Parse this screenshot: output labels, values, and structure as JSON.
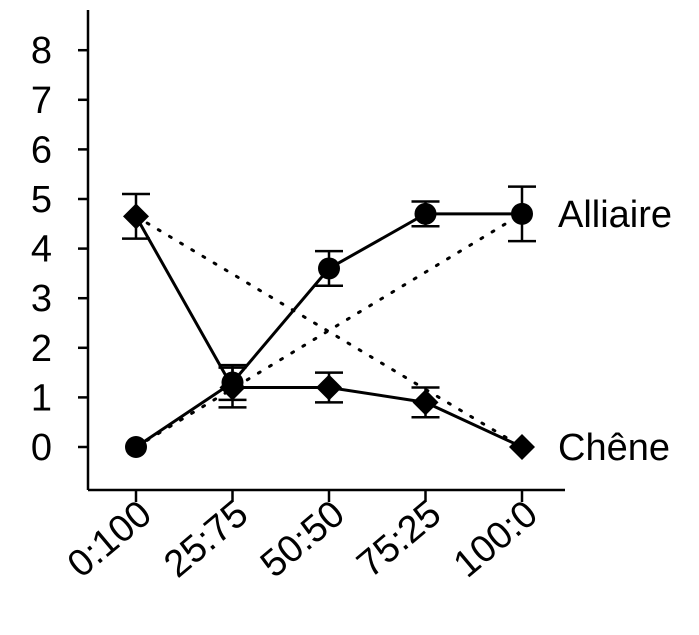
{
  "chart_data": {
    "type": "line",
    "categories": [
      "0:100",
      "25:75",
      "50:50",
      "75:25",
      "100:0"
    ],
    "ylim": [
      0,
      8
    ],
    "yticks": [
      0,
      1,
      2,
      3,
      4,
      5,
      6,
      7,
      8
    ],
    "grid": false,
    "series": [
      {
        "name": "Alliaire",
        "marker": "circle",
        "values": [
          0,
          1.3,
          3.6,
          4.7,
          4.7
        ],
        "error": [
          null,
          0.35,
          0.35,
          0.25,
          0.55
        ]
      },
      {
        "name": "Chêne",
        "marker": "diamond",
        "values": [
          4.65,
          1.2,
          1.2,
          0.9,
          0
        ],
        "error": [
          0.45,
          0.4,
          0.3,
          0.3,
          null
        ]
      }
    ],
    "expected_lines": [
      {
        "series": "Alliaire",
        "from": [
          0,
          0
        ],
        "to": [
          4,
          4.7
        ],
        "style": "dotted"
      },
      {
        "series": "Chêne",
        "from": [
          0,
          4.65
        ],
        "to": [
          4,
          0
        ],
        "style": "dotted"
      }
    ],
    "colors": {
      "line": "#000000",
      "background": "#ffffff"
    }
  }
}
